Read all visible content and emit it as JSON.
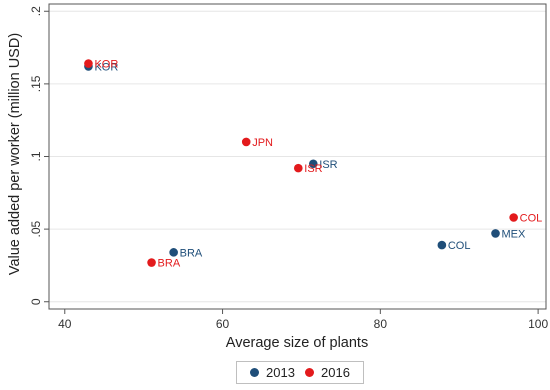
{
  "chart_data": {
    "type": "scatter",
    "xlabel": "Average size of plants",
    "ylabel": "Value added per worker (million USD)",
    "xlim": [
      38,
      101
    ],
    "ylim": [
      -0.005,
      0.205
    ],
    "xticks": [
      40,
      60,
      80,
      100
    ],
    "yticks": [
      0,
      0.05,
      0.1,
      0.15,
      0.2
    ],
    "xtick_labels": [
      "40",
      "60",
      "80",
      "100"
    ],
    "ytick_labels": [
      "0",
      ".05",
      ".1",
      ".15",
      ".2"
    ],
    "grid": "horizontal",
    "legend_position": "bottom",
    "series": [
      {
        "name": "2013",
        "color": "#1f4e79",
        "points": [
          {
            "label": "KOR",
            "x": 43.0,
            "y": 0.162
          },
          {
            "label": "BRA",
            "x": 53.8,
            "y": 0.034
          },
          {
            "label": "ISR",
            "x": 71.5,
            "y": 0.095
          },
          {
            "label": "COL",
            "x": 87.8,
            "y": 0.039
          },
          {
            "label": "MEX",
            "x": 94.6,
            "y": 0.047
          }
        ]
      },
      {
        "name": "2016",
        "color": "#e31a1c",
        "points": [
          {
            "label": "KOR",
            "x": 43.0,
            "y": 0.164
          },
          {
            "label": "JPN",
            "x": 63.0,
            "y": 0.11
          },
          {
            "label": "ISR",
            "x": 69.6,
            "y": 0.092
          },
          {
            "label": "BRA",
            "x": 51.0,
            "y": 0.027
          },
          {
            "label": "COL",
            "x": 96.9,
            "y": 0.058
          }
        ]
      }
    ]
  }
}
